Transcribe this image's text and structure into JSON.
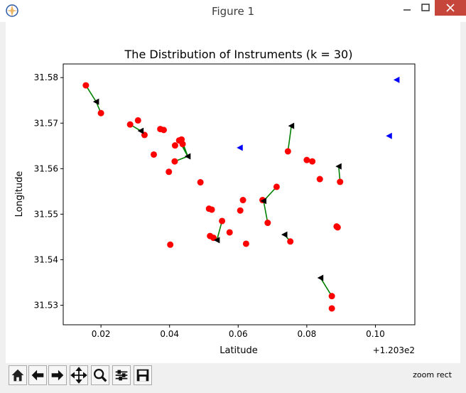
{
  "window": {
    "title": "Figure 1",
    "controls": [
      "minimize",
      "maximize",
      "close"
    ]
  },
  "toolbar": {
    "tools": [
      "home-icon",
      "back-arrow-icon",
      "forward-arrow-icon",
      "pan-icon",
      "zoom-icon",
      "subplots-config-icon",
      "save-icon"
    ],
    "status": "zoom rect"
  },
  "chart_data": {
    "type": "scatter",
    "title": "The Distribution of Instruments (k = 30)",
    "xlabel": "Latitude",
    "ylabel": "Longitude",
    "x_offset_label": "+1.203e2",
    "xlim": [
      0.009,
      0.1115
    ],
    "ylim": [
      31.5257,
      31.583
    ],
    "x_ticks": [
      {
        "value": 0.02,
        "label": "0.02"
      },
      {
        "value": 0.04,
        "label": "0.04"
      },
      {
        "value": 0.06,
        "label": "0.06"
      },
      {
        "value": 0.08,
        "label": "0.08"
      },
      {
        "value": 0.1,
        "label": "0.10"
      }
    ],
    "y_ticks": [
      {
        "value": 31.53,
        "label": "31.53"
      },
      {
        "value": 31.54,
        "label": "31.54"
      },
      {
        "value": 31.55,
        "label": "31.55"
      },
      {
        "value": 31.56,
        "label": "31.56"
      },
      {
        "value": 31.57,
        "label": "31.57"
      },
      {
        "value": 31.58,
        "label": "31.58"
      }
    ],
    "colors": {
      "points": "#ff0000",
      "assigned_centers": "#000000",
      "unused_centers": "#0000ff",
      "links": "#008000"
    },
    "points": [
      [
        0.0156,
        31.5783
      ],
      [
        0.02,
        31.5722
      ],
      [
        0.0285,
        31.5697
      ],
      [
        0.0308,
        31.5706
      ],
      [
        0.0327,
        31.5674
      ],
      [
        0.0373,
        31.5687
      ],
      [
        0.0383,
        31.5685
      ],
      [
        0.0354,
        31.5631
      ],
      [
        0.0398,
        31.5593
      ],
      [
        0.0416,
        31.5651
      ],
      [
        0.0428,
        31.5662
      ],
      [
        0.0435,
        31.5664
      ],
      [
        0.0438,
        31.5654
      ],
      [
        0.0415,
        31.5616
      ],
      [
        0.049,
        31.557
      ],
      [
        0.0515,
        31.5512
      ],
      [
        0.0523,
        31.551
      ],
      [
        0.0614,
        31.5531
      ],
      [
        0.0606,
        31.5508
      ],
      [
        0.0553,
        31.5485
      ],
      [
        0.0575,
        31.546
      ],
      [
        0.0518,
        31.5452
      ],
      [
        0.0528,
        31.5448
      ],
      [
        0.0402,
        31.5433
      ],
      [
        0.0623,
        31.5435
      ],
      [
        0.0671,
        31.5531
      ],
      [
        0.0712,
        31.556
      ],
      [
        0.0686,
        31.5481
      ],
      [
        0.0752,
        31.544
      ],
      [
        0.0745,
        31.5638
      ],
      [
        0.08,
        31.5619
      ],
      [
        0.0816,
        31.5616
      ],
      [
        0.0838,
        31.5577
      ],
      [
        0.0897,
        31.5571
      ],
      [
        0.0887,
        31.5473
      ],
      [
        0.089,
        31.5471
      ],
      [
        0.0873,
        31.532
      ],
      [
        0.0873,
        31.5293
      ]
    ],
    "centers": [
      {
        "x": 0.0186,
        "y": 31.5747,
        "members": [
          [
            0.0156,
            31.5783
          ],
          [
            0.02,
            31.5722
          ]
        ]
      },
      {
        "x": 0.0316,
        "y": 31.5683,
        "members": [
          [
            0.0285,
            31.5697
          ],
          [
            0.0327,
            31.5674
          ]
        ]
      },
      {
        "x": 0.0453,
        "y": 31.5627,
        "members": [
          [
            0.0428,
            31.5662
          ],
          [
            0.0435,
            31.5664
          ],
          [
            0.0438,
            31.5654
          ],
          [
            0.0415,
            31.5616
          ]
        ]
      },
      {
        "x": 0.0755,
        "y": 31.5694,
        "members": [
          [
            0.0745,
            31.5638
          ]
        ]
      },
      {
        "x": 0.0893,
        "y": 31.5605,
        "members": [
          [
            0.0897,
            31.5571
          ]
        ]
      },
      {
        "x": 0.0674,
        "y": 31.5529,
        "members": [
          [
            0.0712,
            31.556
          ],
          [
            0.0686,
            31.5481
          ]
        ]
      },
      {
        "x": 0.0735,
        "y": 31.5455,
        "members": [
          [
            0.0752,
            31.544
          ]
        ]
      },
      {
        "x": 0.0538,
        "y": 31.5443,
        "members": [
          [
            0.0553,
            31.5485
          ],
          [
            0.0528,
            31.5448
          ],
          [
            0.0518,
            31.5452
          ]
        ]
      },
      {
        "x": 0.084,
        "y": 31.536,
        "members": [
          [
            0.0873,
            31.532
          ]
        ]
      }
    ],
    "unused_centers": [
      [
        0.1062,
        31.5795
      ],
      [
        0.104,
        31.5672
      ],
      [
        0.0605,
        31.5646
      ]
    ]
  }
}
